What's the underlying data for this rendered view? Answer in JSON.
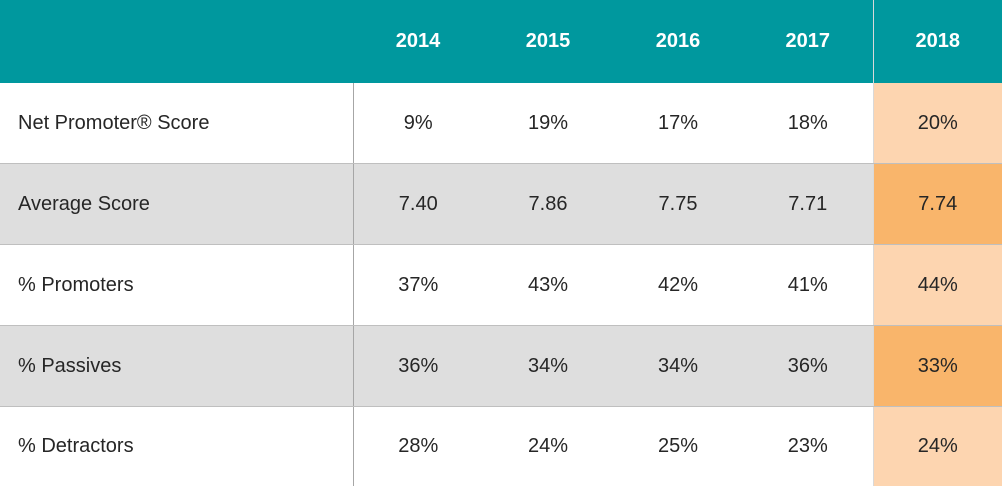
{
  "colors": {
    "header_bg": "#00989e",
    "header_text": "#ffffff",
    "stripe": "#dedede",
    "highlight_light": "#fdd5b0",
    "highlight_dark": "#f9b56b"
  },
  "chart_data": {
    "type": "table",
    "columns": [
      "",
      "2014",
      "2015",
      "2016",
      "2017",
      "2018"
    ],
    "highlighted_column": "2018",
    "rows": [
      {
        "label": "Net Promoter® Score",
        "values": [
          "9%",
          "19%",
          "17%",
          "18%",
          "20%"
        ]
      },
      {
        "label": "Average Score",
        "values": [
          "7.40",
          "7.86",
          "7.75",
          "7.71",
          "7.74"
        ]
      },
      {
        "label": "% Promoters",
        "values": [
          "37%",
          "43%",
          "42%",
          "41%",
          "44%"
        ]
      },
      {
        "label": "% Passives",
        "values": [
          "36%",
          "34%",
          "34%",
          "36%",
          "33%"
        ]
      },
      {
        "label": "% Detractors",
        "values": [
          "28%",
          "24%",
          "25%",
          "23%",
          "24%"
        ]
      }
    ]
  }
}
